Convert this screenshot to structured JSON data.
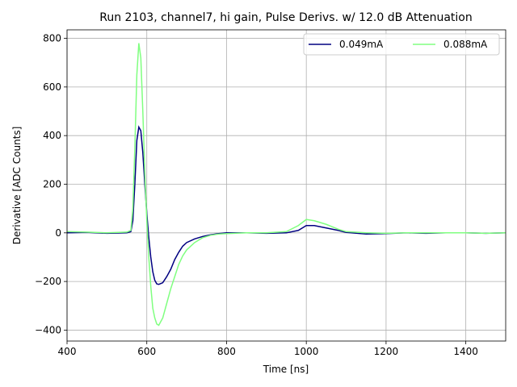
{
  "chart_data": {
    "type": "line",
    "title": "Run 2103, channel7, hi gain, Pulse Derivs. w/ 12.0 dB Attenuation",
    "xlabel": "Time [ns]",
    "ylabel": "Derivative [ADC Counts]",
    "x": [
      400,
      450,
      500,
      550,
      560,
      565,
      570,
      575,
      580,
      585,
      590,
      595,
      600,
      605,
      610,
      615,
      620,
      625,
      630,
      640,
      650,
      660,
      670,
      680,
      690,
      700,
      720,
      740,
      760,
      780,
      800,
      850,
      900,
      950,
      980,
      1000,
      1020,
      1050,
      1080,
      1100,
      1150,
      1200,
      1250,
      1300,
      1350,
      1400,
      1450,
      1500
    ],
    "series": [
      {
        "name": "0.049mA",
        "color": "#000080",
        "values": [
          0,
          2,
          -2,
          0,
          5,
          50,
          200,
          380,
          435,
          420,
          330,
          200,
          80,
          -20,
          -100,
          -160,
          -195,
          -210,
          -212,
          -205,
          -180,
          -150,
          -110,
          -80,
          -55,
          -40,
          -25,
          -15,
          -8,
          -3,
          0,
          0,
          -2,
          0,
          10,
          30,
          30,
          20,
          10,
          2,
          -5,
          -3,
          0,
          -2,
          0,
          0,
          -2,
          0
        ]
      },
      {
        "name": "0.088mA",
        "color": "#80ff80",
        "values": [
          5,
          3,
          0,
          3,
          10,
          100,
          350,
          650,
          780,
          720,
          500,
          250,
          50,
          -100,
          -220,
          -310,
          -350,
          -375,
          -380,
          -350,
          -290,
          -230,
          -180,
          -130,
          -95,
          -70,
          -40,
          -20,
          -10,
          -5,
          -3,
          0,
          0,
          5,
          30,
          55,
          50,
          35,
          15,
          5,
          0,
          -2,
          0,
          0,
          0,
          0,
          -2,
          0
        ]
      }
    ],
    "xlim": [
      400,
      1500
    ],
    "ylim": [
      -445,
      835
    ],
    "xticks": [
      400,
      600,
      800,
      1000,
      1200,
      1400
    ],
    "yticks": [
      {
        "value": -400,
        "label": "−400"
      },
      {
        "value": -200,
        "label": "−200"
      },
      0,
      200,
      400,
      600,
      800
    ],
    "grid": true,
    "legend": "upper right"
  }
}
